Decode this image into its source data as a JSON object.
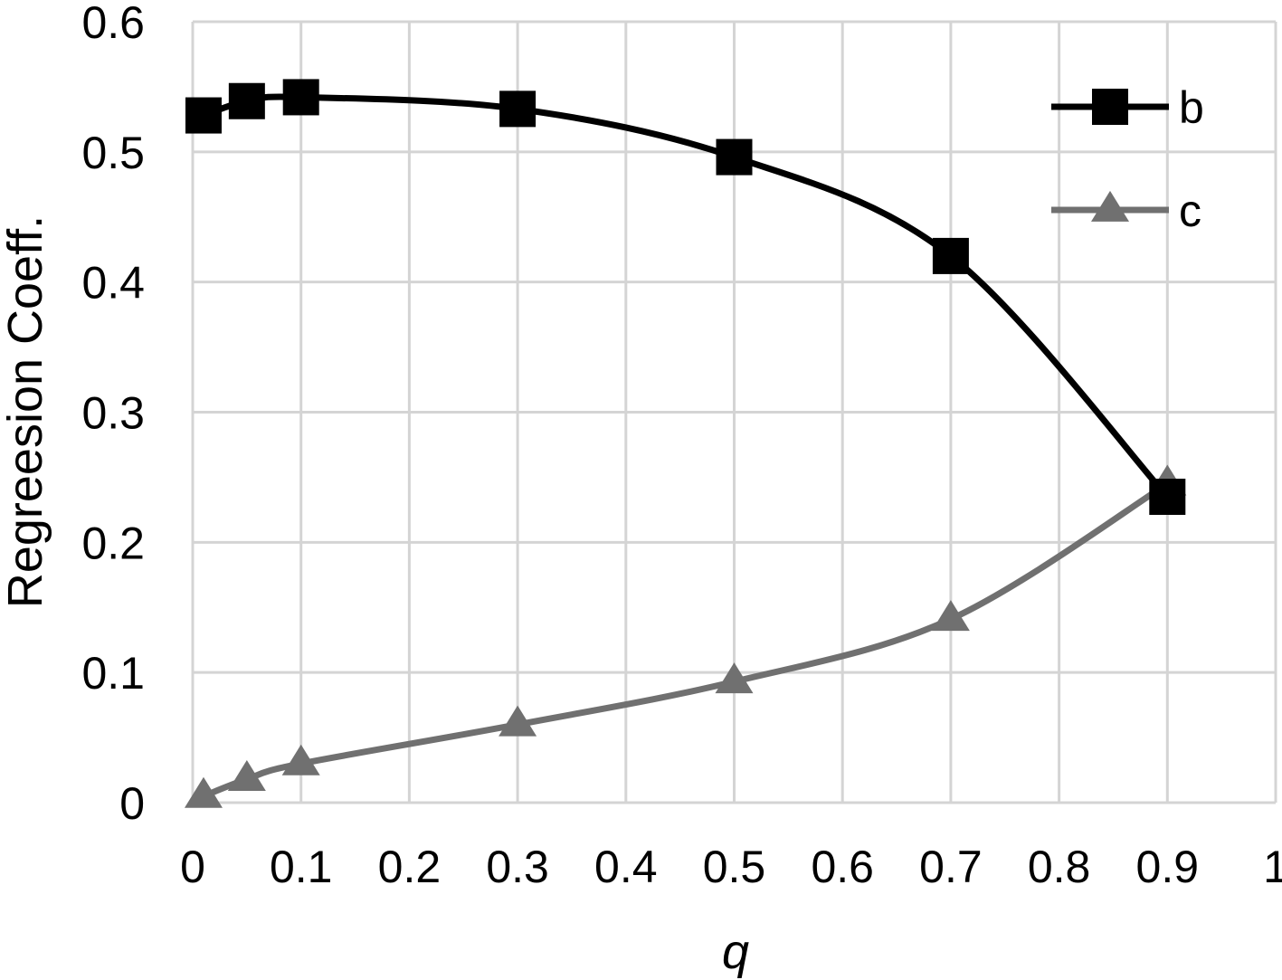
{
  "chart_data": {
    "type": "line",
    "xlabel": "q",
    "ylabel": "Regreesion Coeff.",
    "xlim": [
      0,
      1
    ],
    "ylim": [
      0,
      0.6
    ],
    "x_ticks": [
      0,
      0.1,
      0.2,
      0.3,
      0.4,
      0.5,
      0.6,
      0.7,
      0.8,
      0.9,
      1
    ],
    "x_tick_labels": [
      "0",
      "0.1",
      "0.2",
      "0.3",
      "0.4",
      "0.5",
      "0.6",
      "0.7",
      "0.8",
      "0.9",
      "1"
    ],
    "y_ticks": [
      0,
      0.1,
      0.2,
      0.3,
      0.4,
      0.5,
      0.6
    ],
    "y_tick_labels": [
      "0",
      "0.1",
      "0.2",
      "0.3",
      "0.4",
      "0.5",
      "0.6"
    ],
    "grid": true,
    "legend_position": "top-right",
    "series": [
      {
        "name": "b",
        "marker": "square",
        "color": "#000000",
        "x": [
          0.01,
          0.05,
          0.1,
          0.3,
          0.5,
          0.7,
          0.9
        ],
        "y": [
          0.528,
          0.539,
          0.542,
          0.533,
          0.496,
          0.42,
          0.235
        ]
      },
      {
        "name": "c",
        "marker": "triangle",
        "color": "#707070",
        "x": [
          0.01,
          0.05,
          0.1,
          0.3,
          0.5,
          0.7,
          0.9
        ],
        "y": [
          0.005,
          0.018,
          0.03,
          0.06,
          0.093,
          0.141,
          0.245
        ]
      }
    ]
  }
}
